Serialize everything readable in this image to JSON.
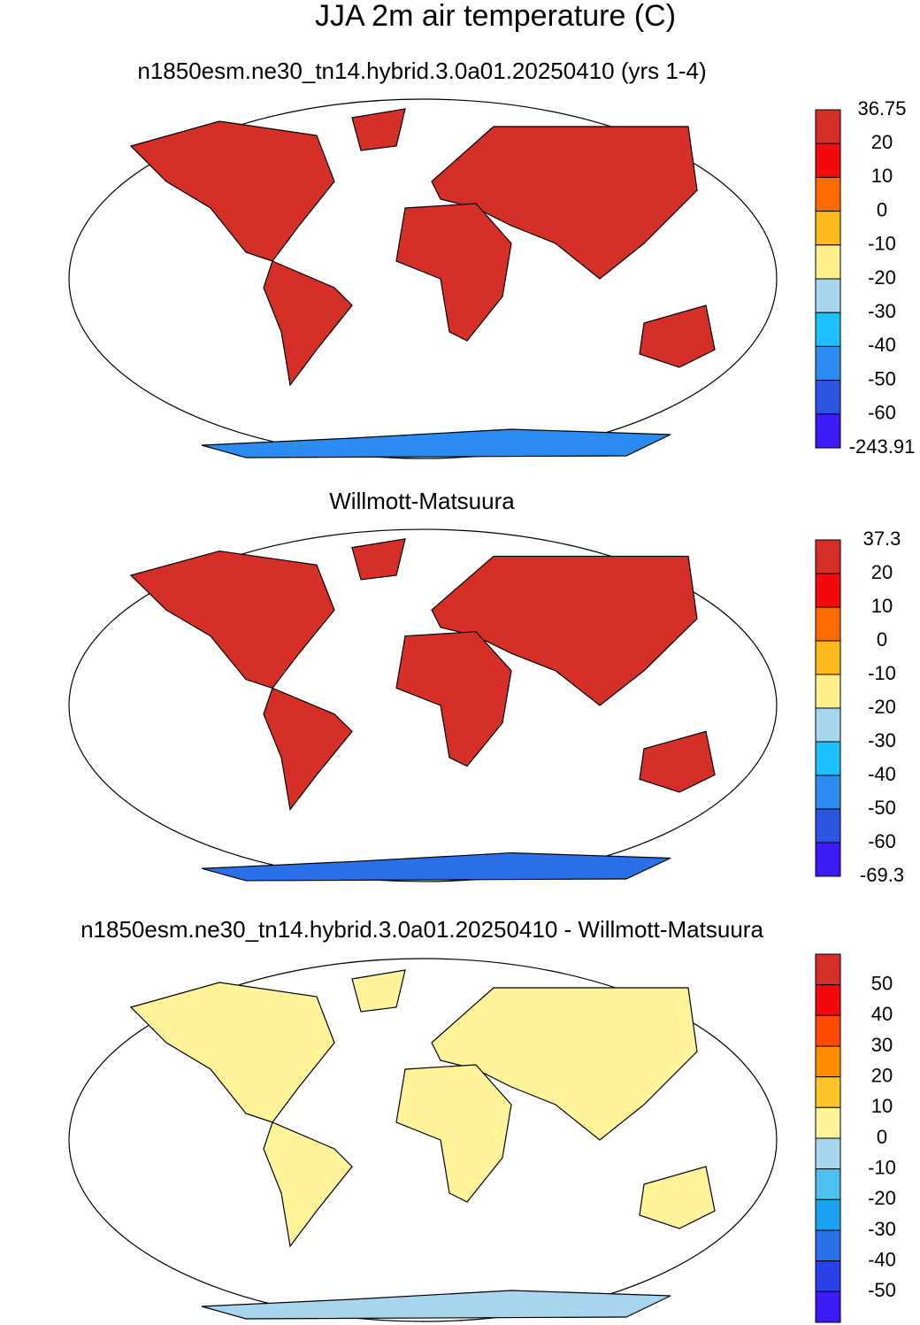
{
  "title": "JJA 2m air temperature (C)",
  "panels": [
    {
      "title": "n1850esm.ne30_tn14.hybrid.3.0a01.20250410 (yrs 1-4)",
      "colorbar": {
        "labels": [
          "36.75",
          "20",
          "10",
          "0",
          "-10",
          "-20",
          "-30",
          "-40",
          "-50",
          "-60",
          "-243.91"
        ],
        "colors": [
          "#d62f27",
          "#f40a0a",
          "#ff6a00",
          "#ffb81c",
          "#fff08c",
          "#a8d6f0",
          "#1cc0ff",
          "#2a8cf0",
          "#2b55e0",
          "#3b1cf5"
        ]
      }
    },
    {
      "title": "Willmott-Matsuura",
      "colorbar": {
        "labels": [
          "37.3",
          "20",
          "10",
          "0",
          "-10",
          "-20",
          "-30",
          "-40",
          "-50",
          "-60",
          "-69.3"
        ],
        "colors": [
          "#d62f27",
          "#f40a0a",
          "#ff6a00",
          "#ffb81c",
          "#fff08c",
          "#a8d6f0",
          "#1cc0ff",
          "#2a8cf0",
          "#2b55e0",
          "#3b1cf5"
        ]
      }
    },
    {
      "title": "n1850esm.ne30_tn14.hybrid.3.0a01.20250410 - Willmott-Matsuura",
      "colorbar": {
        "labels": [
          "50",
          "40",
          "30",
          "20",
          "10",
          "0",
          "-10",
          "-20",
          "-30",
          "-40",
          "-50"
        ],
        "colors": [
          "#d62f27",
          "#f40a0a",
          "#ff4a00",
          "#ff8c00",
          "#ffc428",
          "#fff49a",
          "#a8d6f0",
          "#4fc0f0",
          "#1ca0f0",
          "#2a70e8",
          "#2a40e8",
          "#3b1cf5"
        ]
      }
    }
  ]
}
